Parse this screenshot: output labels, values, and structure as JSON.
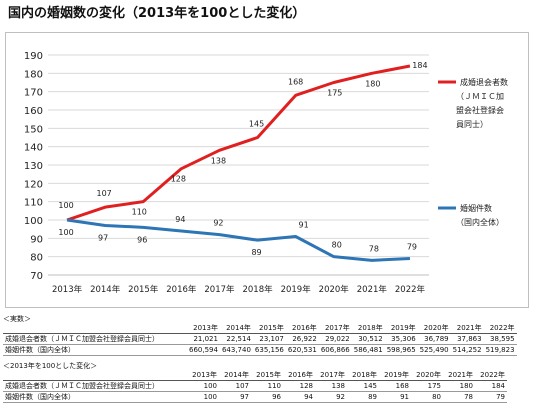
{
  "title": "国内の婚姻数の変化（2013年を100とした変化）",
  "chart_data": {
    "type": "line",
    "x": [
      "2013年",
      "2014年",
      "2015年",
      "2016年",
      "2017年",
      "2018年",
      "2019年",
      "2020年",
      "2021年",
      "2022年"
    ],
    "ylim": [
      70,
      190
    ],
    "yticks": [
      70,
      80,
      90,
      100,
      110,
      120,
      130,
      140,
      150,
      160,
      170,
      180,
      190
    ],
    "grid": true,
    "legend": "right",
    "series": [
      {
        "name": "成婚退会者数（ＪＭＩＣ加盟会社登録会員同士）",
        "legend_lines": [
          "成婚退会者数",
          "（ＪＭＩＣ加",
          "盟会社登録会",
          "員同士）"
        ],
        "color": "#e02020",
        "values": [
          100,
          107,
          110,
          128,
          138,
          145,
          168,
          175,
          180,
          184
        ]
      },
      {
        "name": "婚姻件数（国内全体）",
        "legend_lines": [
          "婚姻件数",
          "（国内全体）"
        ],
        "color": "#2e75b6",
        "values": [
          100,
          97,
          96,
          94,
          92,
          89,
          91,
          80,
          78,
          79
        ]
      }
    ]
  },
  "table_actual": {
    "caption": "＜実数＞",
    "years": [
      "2013年",
      "2014年",
      "2015年",
      "2016年",
      "2017年",
      "2018年",
      "2019年",
      "2020年",
      "2021年",
      "2022年"
    ],
    "rows": [
      {
        "label": "成婚退会者数（ＪＭＩＣ加盟会社登録会員同士）",
        "values": [
          "21,021",
          "22,514",
          "23,107",
          "26,922",
          "29,022",
          "30,512",
          "35,306",
          "36,789",
          "37,863",
          "38,595"
        ]
      },
      {
        "label": "婚姻件数（国内全体）",
        "values": [
          "660,594",
          "643,740",
          "635,156",
          "620,531",
          "606,866",
          "586,481",
          "598,965",
          "525,490",
          "514,252",
          "519,823"
        ]
      }
    ]
  },
  "table_index": {
    "caption": "＜2013年を100とした変化＞",
    "years": [
      "2013年",
      "2014年",
      "2015年",
      "2016年",
      "2017年",
      "2018年",
      "2019年",
      "2020年",
      "2021年",
      "2022年"
    ],
    "rows": [
      {
        "label": "成婚退会者数（ＪＭＩＣ加盟会社登録会員同士）",
        "values": [
          "100",
          "107",
          "110",
          "128",
          "138",
          "145",
          "168",
          "175",
          "180",
          "184"
        ]
      },
      {
        "label": "婚姻件数（国内全体）",
        "values": [
          "100",
          "97",
          "96",
          "94",
          "92",
          "89",
          "91",
          "80",
          "78",
          "79"
        ]
      }
    ]
  }
}
